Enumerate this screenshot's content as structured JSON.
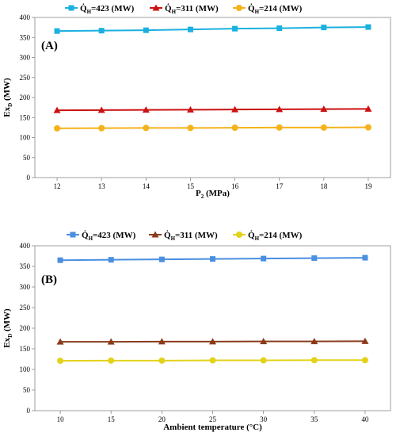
{
  "chart_data": [
    {
      "type": "line",
      "panel_label": "(A)",
      "xlabel_main": "P",
      "xlabel_sub": "2",
      "xlabel_rest": " (MPa)",
      "ylabel_main": "Ex",
      "ylabel_sub": "D",
      "ylabel_rest": " (MW)",
      "x": [
        12,
        13,
        14,
        15,
        16,
        17,
        18,
        19
      ],
      "xlim": [
        11.5,
        19.5
      ],
      "ylim": [
        0,
        400
      ],
      "y_ticks": [
        0,
        50,
        100,
        150,
        200,
        250,
        300,
        350,
        400
      ],
      "legend_position": "top",
      "series": [
        {
          "legend_main": "Q̇",
          "legend_sub": "H",
          "legend_rest": "=423 (MW)",
          "color": "#1ab0e0",
          "marker": "square",
          "values": [
            366,
            367,
            368,
            370,
            372,
            373,
            375,
            376
          ]
        },
        {
          "legend_main": "Q̇",
          "legend_sub": "H",
          "legend_rest": "=311 (MW)",
          "color": "#cc1111",
          "marker": "triangle",
          "values": [
            168,
            168.5,
            169,
            169.5,
            170,
            170.5,
            171,
            171.5
          ]
        },
        {
          "legend_main": "Q̇",
          "legend_sub": "H",
          "legend_rest": "=214 (MW)",
          "color": "#f5b21a",
          "marker": "circle",
          "values": [
            123,
            123.5,
            124,
            124,
            124.5,
            125,
            125,
            125.5
          ]
        }
      ]
    },
    {
      "type": "line",
      "panel_label": "(B)",
      "xlabel_main": "Ambient temperature (°C)",
      "xlabel_sub": "",
      "xlabel_rest": "",
      "ylabel_main": "Ex",
      "ylabel_sub": "D",
      "ylabel_rest": " (MW)",
      "x": [
        10,
        15,
        20,
        25,
        30,
        35,
        40
      ],
      "xlim": [
        7.5,
        42.5
      ],
      "ylim": [
        0,
        400
      ],
      "y_ticks": [
        0,
        50,
        100,
        150,
        200,
        250,
        300,
        350,
        400
      ],
      "legend_position": "top",
      "series": [
        {
          "legend_main": "Q̇",
          "legend_sub": "H",
          "legend_rest": "=423 (MW)",
          "color": "#4a8fe0",
          "marker": "square",
          "values": [
            365,
            366,
            367,
            368,
            369,
            370,
            371
          ]
        },
        {
          "legend_main": "Q̇",
          "legend_sub": "H",
          "legend_rest": "=311 (MW)",
          "color": "#8b3a1a",
          "marker": "triangle",
          "values": [
            167,
            167,
            167.5,
            167.5,
            168,
            168,
            168.5
          ]
        },
        {
          "legend_main": "Q̇",
          "legend_sub": "H",
          "legend_rest": "=214 (MW)",
          "color": "#e3d21a",
          "marker": "circle",
          "values": [
            121,
            121.5,
            121.5,
            122,
            122,
            122.5,
            122.5
          ]
        }
      ]
    }
  ]
}
